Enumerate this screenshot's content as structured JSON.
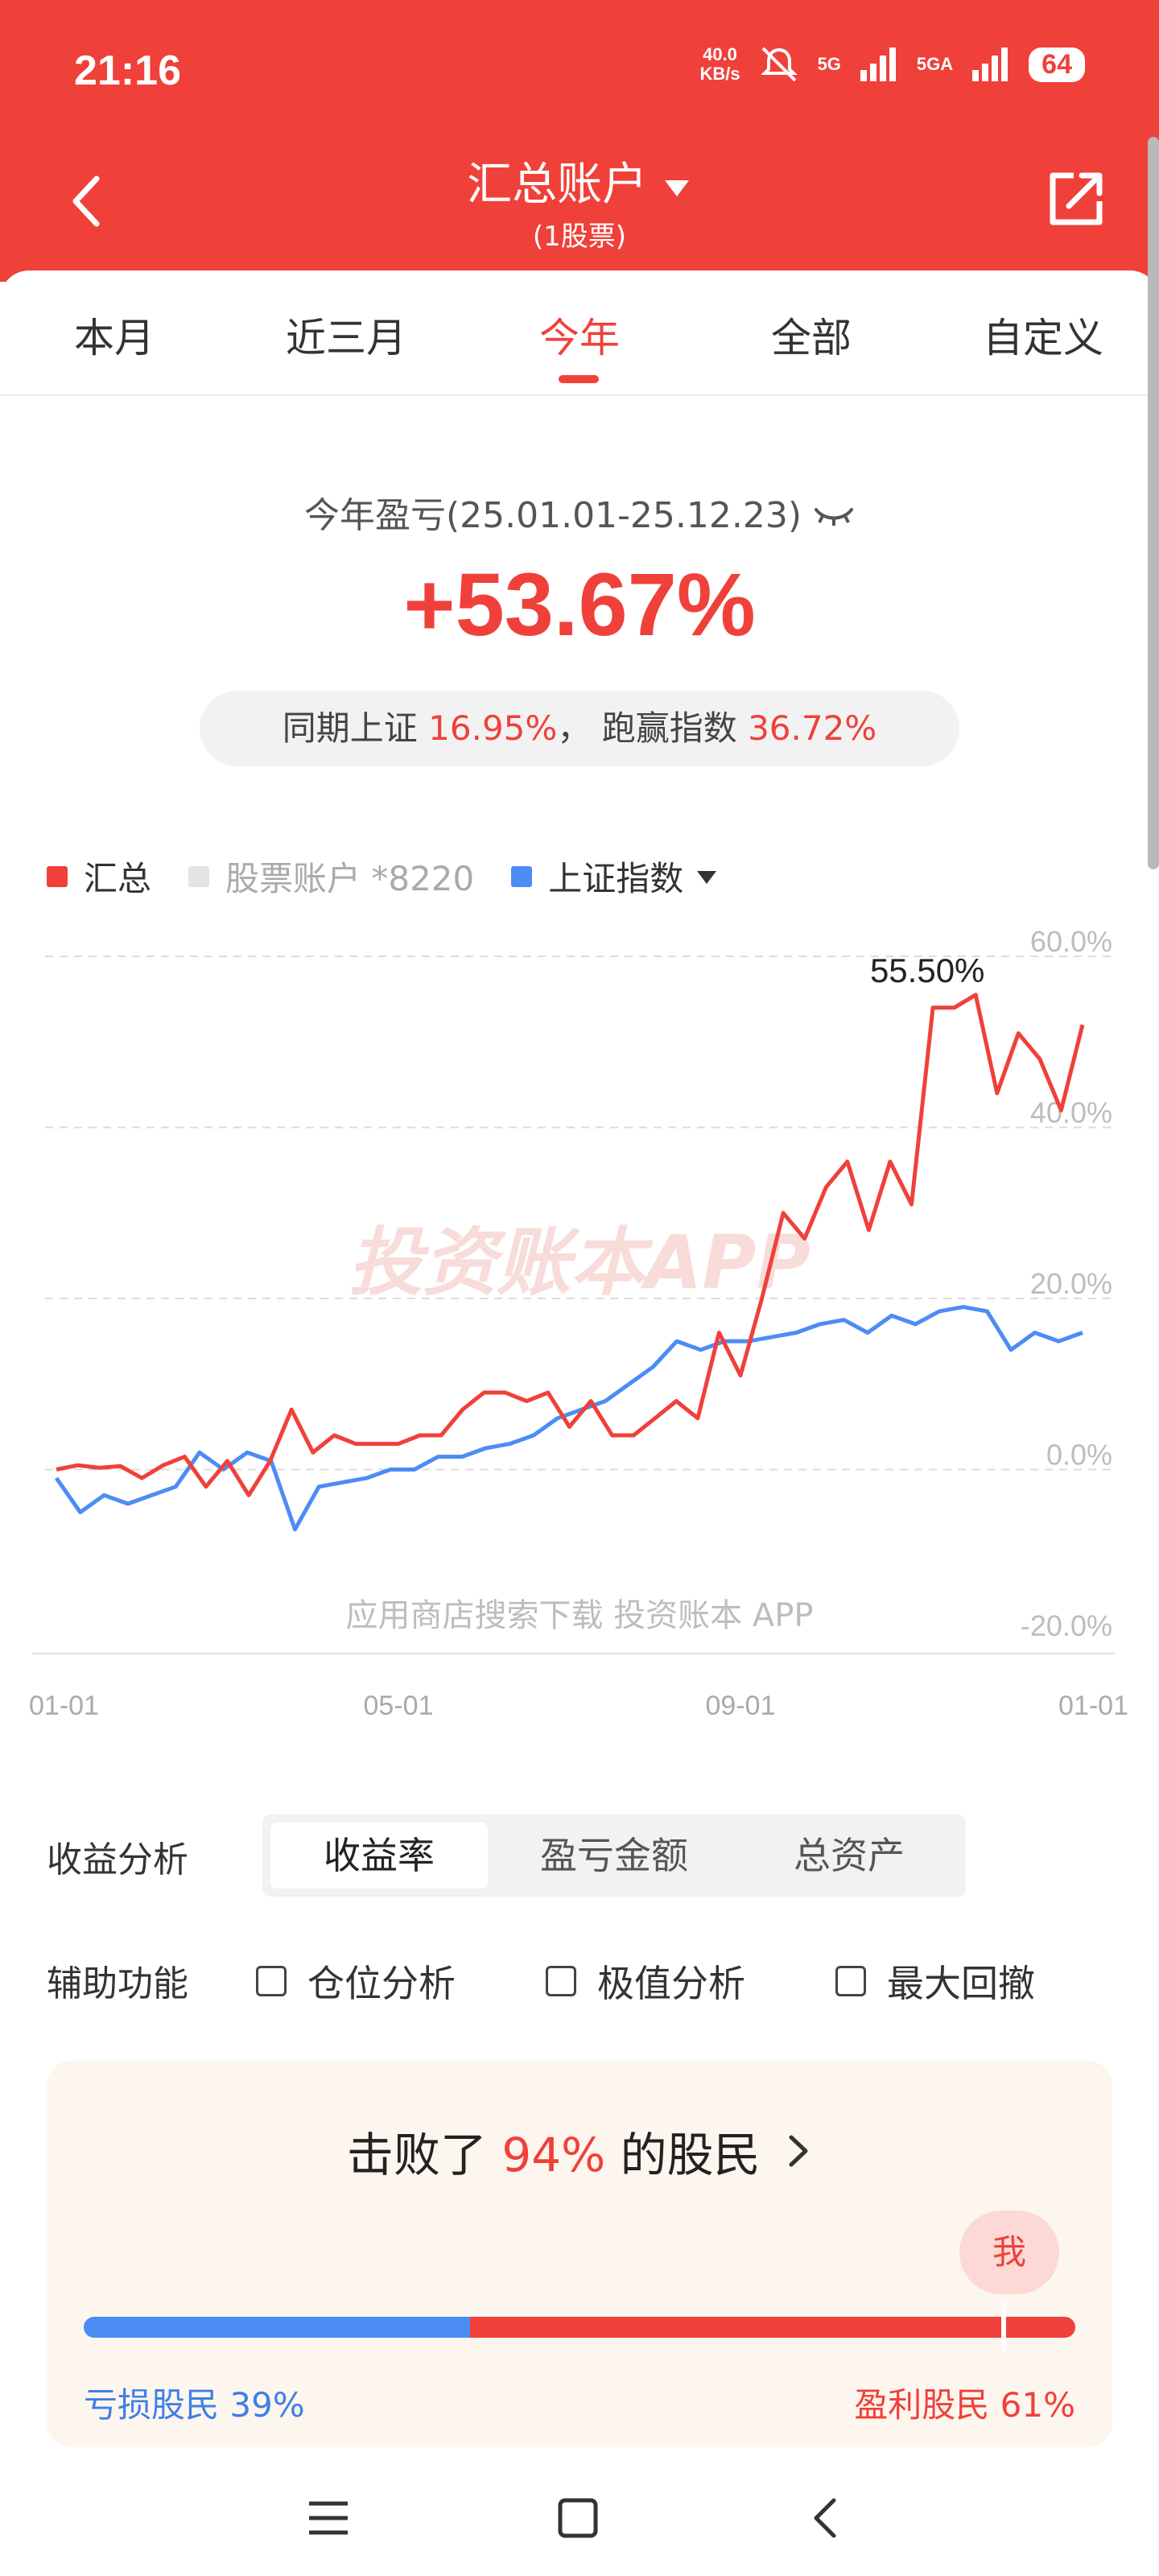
{
  "status_bar": {
    "time": "21:16",
    "speed_value": "40.0",
    "speed_unit": "KB/s",
    "net1": "5G",
    "net2": "5GA",
    "battery": "64"
  },
  "nav": {
    "title": "汇总账户",
    "subtitle": "(1股票)"
  },
  "tabs": [
    {
      "label": "本月",
      "active": false
    },
    {
      "label": "近三月",
      "active": false
    },
    {
      "label": "今年",
      "active": true
    },
    {
      "label": "全部",
      "active": false
    },
    {
      "label": "自定义",
      "active": false
    }
  ],
  "summary": {
    "label": "今年盈亏(25.01.01-25.12.23)",
    "value": "+53.67%",
    "cmp_prefix": "同期上证",
    "cmp_value": "16.95%",
    "cmp_sep": "，",
    "beat_label": "跑赢指数",
    "beat_value": "36.72%"
  },
  "legend": [
    {
      "label": "汇总",
      "color": "#f0403a"
    },
    {
      "label": "股票账户 *8220",
      "color": "#e4e4e4"
    },
    {
      "label": "上证指数",
      "color": "#4c8cf5"
    }
  ],
  "chart_data": {
    "type": "line",
    "x_ticks": [
      "01-01",
      "05-01",
      "09-01",
      "01-01"
    ],
    "y_ticks": [
      "60.0%",
      "40.0%",
      "20.0%",
      "0.0%",
      "-20.0%"
    ],
    "ylim": [
      -20,
      60
    ],
    "annotation": "55.50%",
    "watermark": "投资账本APP",
    "footer_text": "应用商店搜索下载",
    "footer_brand": "投资账本",
    "footer_app": "APP",
    "series": [
      {
        "name": "汇总",
        "color": "#f0403a",
        "values": [
          0,
          0.5,
          0.2,
          0.4,
          -1,
          0.5,
          1.5,
          -2,
          1,
          -3,
          1,
          7,
          2,
          4,
          3,
          3,
          3,
          4,
          4,
          7,
          9,
          9,
          8,
          9,
          5,
          8,
          4,
          4,
          6,
          8,
          6,
          16,
          11,
          20,
          30,
          27,
          33,
          36,
          28,
          36,
          31,
          54,
          54,
          55.5,
          44,
          51,
          48,
          42,
          52
        ]
      },
      {
        "name": "上证指数",
        "color": "#4c8cf5",
        "values": [
          -1,
          -5,
          -3,
          -4,
          -3,
          -2,
          2,
          0,
          2,
          1,
          -7,
          -2,
          -1.5,
          -1,
          0,
          0,
          1.5,
          1.5,
          2.5,
          3,
          4,
          6,
          7,
          8,
          10,
          12,
          15,
          14,
          15,
          15,
          15.5,
          16,
          17,
          17.5,
          16,
          18,
          17,
          18.5,
          19,
          18.5,
          14,
          16,
          15,
          16
        ]
      }
    ]
  },
  "analysis": {
    "label": "收益分析",
    "seg": [
      {
        "label": "收益率",
        "active": true
      },
      {
        "label": "盈亏金额",
        "active": false
      },
      {
        "label": "总资产",
        "active": false
      }
    ],
    "aux_label": "辅助功能",
    "checks": [
      {
        "label": "仓位分析"
      },
      {
        "label": "极值分析"
      },
      {
        "label": "最大回撤"
      }
    ]
  },
  "rank": {
    "prefix": "击败了",
    "pct": "94%",
    "suffix": "的股民",
    "me": "我",
    "loss_label": "亏损股民 39%",
    "win_label": "盈利股民 61%",
    "loss_fraction": 0.39,
    "me_fraction": 0.94
  }
}
